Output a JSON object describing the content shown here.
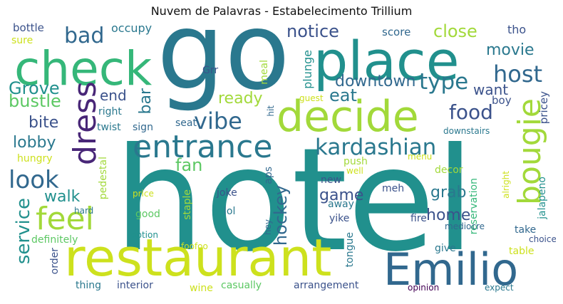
{
  "title": "Nuvem de Palavras - Estabelecimento Trillium",
  "colors": {
    "yellow": "#cde11d",
    "lime": "#a2d93a",
    "green": "#5cc863",
    "teal": "#21908d",
    "teal2": "#2a788e",
    "blue": "#31688e",
    "indigo": "#3b528b",
    "purple": "#440154",
    "dpurple": "#482677",
    "seafoam": "#35b779"
  },
  "words": [
    {
      "text": "hotel",
      "color": "teal"
    },
    {
      "text": "go",
      "color": "teal2"
    },
    {
      "text": "restaurant",
      "color": "yellow"
    },
    {
      "text": "place",
      "color": "teal"
    },
    {
      "text": "check",
      "color": "seafoam"
    },
    {
      "text": "decide",
      "color": "lime"
    },
    {
      "text": "Emilio",
      "color": "blue"
    },
    {
      "text": "entrance",
      "color": "teal2"
    },
    {
      "text": "kardashian",
      "color": "teal2"
    },
    {
      "text": "bougie",
      "color": "lime"
    },
    {
      "text": "dress",
      "color": "dpurple"
    },
    {
      "text": "feel",
      "color": "lime"
    },
    {
      "text": "look",
      "color": "blue"
    },
    {
      "text": "vibe",
      "color": "blue"
    },
    {
      "text": "host",
      "color": "blue"
    },
    {
      "text": "type",
      "color": "teal2"
    },
    {
      "text": "food",
      "color": "indigo"
    },
    {
      "text": "bad",
      "color": "blue"
    },
    {
      "text": "notice",
      "color": "indigo"
    },
    {
      "text": "close",
      "color": "lime"
    },
    {
      "text": "movie",
      "color": "teal2"
    },
    {
      "text": "downtown",
      "color": "blue"
    },
    {
      "text": "Grove",
      "color": "teal"
    },
    {
      "text": "bustle",
      "color": "green"
    },
    {
      "text": "service",
      "color": "teal"
    },
    {
      "text": "bite",
      "color": "indigo"
    },
    {
      "text": "lobby",
      "color": "teal2"
    },
    {
      "text": "walk",
      "color": "teal"
    },
    {
      "text": "fan",
      "color": "green"
    },
    {
      "text": "hockey",
      "color": "blue"
    },
    {
      "text": "game",
      "color": "indigo"
    },
    {
      "text": "grab",
      "color": "teal2"
    },
    {
      "text": "home",
      "color": "indigo"
    },
    {
      "text": "eat",
      "color": "teal2"
    },
    {
      "text": "want",
      "color": "indigo"
    },
    {
      "text": "ready",
      "color": "lime"
    },
    {
      "text": "end",
      "color": "indigo"
    },
    {
      "text": "bar",
      "color": "teal2"
    },
    {
      "text": "bottle",
      "color": "indigo"
    },
    {
      "text": "sure",
      "color": "yellow"
    },
    {
      "text": "occupy",
      "color": "teal2"
    },
    {
      "text": "score",
      "color": "blue"
    },
    {
      "text": "tho",
      "color": "indigo"
    },
    {
      "text": "meal",
      "color": "lime"
    },
    {
      "text": "plunge",
      "color": "teal"
    },
    {
      "text": "guest",
      "color": "yellow"
    },
    {
      "text": "hit",
      "color": "blue"
    },
    {
      "text": "Grr",
      "color": "indigo"
    },
    {
      "text": "boy",
      "color": "indigo"
    },
    {
      "text": "pricey",
      "color": "indigo"
    },
    {
      "text": "right",
      "color": "teal2"
    },
    {
      "text": "seat",
      "color": "blue"
    },
    {
      "text": "twist",
      "color": "teal2"
    },
    {
      "text": "sign",
      "color": "blue"
    },
    {
      "text": "downstairs",
      "color": "teal2"
    },
    {
      "text": "hungry",
      "color": "yellow"
    },
    {
      "text": "push",
      "color": "lime"
    },
    {
      "text": "well",
      "color": "yellow"
    },
    {
      "text": "menu",
      "color": "yellow"
    },
    {
      "text": "decor",
      "color": "lime"
    },
    {
      "text": "alright",
      "color": "yellow"
    },
    {
      "text": "jalapeno",
      "color": "teal"
    },
    {
      "text": "reservation",
      "color": "seafoam"
    },
    {
      "text": "pedestal",
      "color": "lime"
    },
    {
      "text": "aps",
      "color": "blue"
    },
    {
      "text": "new",
      "color": "indigo"
    },
    {
      "text": "meh",
      "color": "indigo"
    },
    {
      "text": "joke",
      "color": "indigo"
    },
    {
      "text": "away",
      "color": "teal2"
    },
    {
      "text": "price",
      "color": "yellow"
    },
    {
      "text": "staple",
      "color": "lime"
    },
    {
      "text": "lol",
      "color": "teal2"
    },
    {
      "text": "yike",
      "color": "indigo"
    },
    {
      "text": "fire",
      "color": "indigo"
    },
    {
      "text": "good",
      "color": "green"
    },
    {
      "text": "hard",
      "color": "teal2"
    },
    {
      "text": "option",
      "color": "teal"
    },
    {
      "text": "hey",
      "color": "blue"
    },
    {
      "text": "mediocre",
      "color": "blue"
    },
    {
      "text": "take",
      "color": "blue"
    },
    {
      "text": "choice",
      "color": "indigo"
    },
    {
      "text": "definitely",
      "color": "green"
    },
    {
      "text": "foofoo",
      "color": "yellow"
    },
    {
      "text": "give",
      "color": "teal2"
    },
    {
      "text": "table",
      "color": "yellow"
    },
    {
      "text": "tongue",
      "color": "teal2"
    },
    {
      "text": "order",
      "color": "indigo"
    },
    {
      "text": "thing",
      "color": "teal2"
    },
    {
      "text": "interior",
      "color": "indigo"
    },
    {
      "text": "wine",
      "color": "yellow"
    },
    {
      "text": "casually",
      "color": "green"
    },
    {
      "text": "arrangement",
      "color": "indigo"
    },
    {
      "text": "opinion",
      "color": "purple"
    },
    {
      "text": "expect",
      "color": "teal2"
    }
  ]
}
